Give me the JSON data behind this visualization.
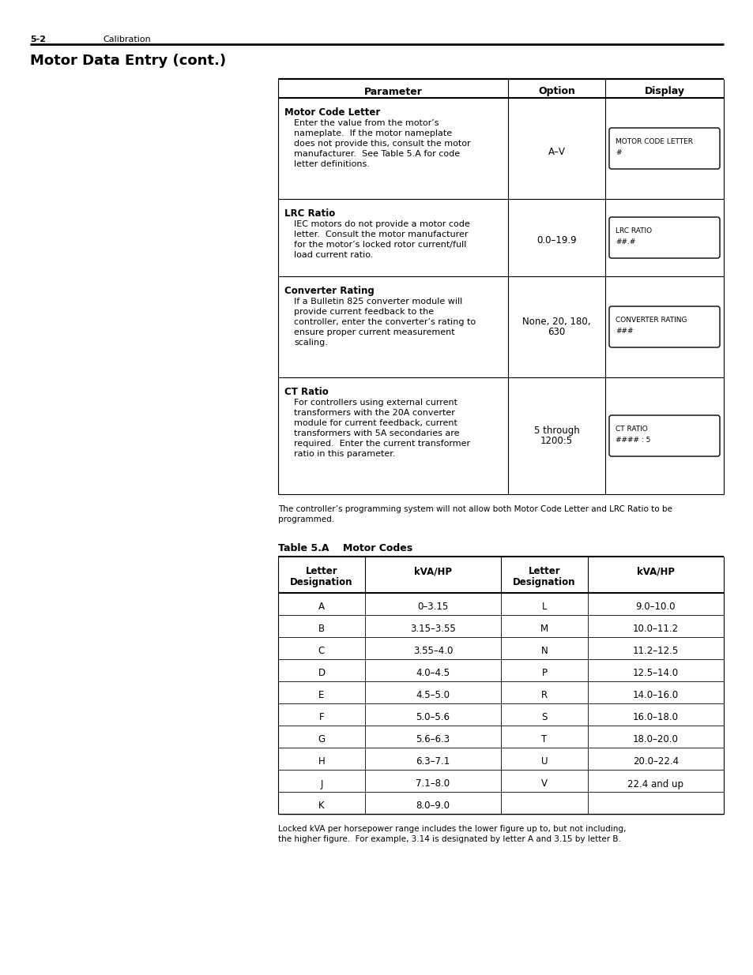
{
  "page_header_left": "5-2",
  "page_header_right": "Calibration",
  "main_title": "Motor Data Entry (cont.)",
  "bg_color": "#ffffff",
  "text_color": "#000000",
  "main_table_headers": [
    "Parameter",
    "Option",
    "Display"
  ],
  "main_table_rows": [
    {
      "param_title": "Motor Code Letter",
      "param_body": [
        "Enter the value from the motor’s",
        "nameplate.  If the motor nameplate",
        "does not provide this, consult the motor",
        "manufacturer.  See Table 5.A for code",
        "letter definitions."
      ],
      "option": [
        "A–V"
      ],
      "display_title": "MOTOR CODE LETTER",
      "display_body": "#"
    },
    {
      "param_title": "LRC Ratio",
      "param_body": [
        "IEC motors do not provide a motor code",
        "letter.  Consult the motor manufacturer",
        "for the motor’s locked rotor current/full",
        "load current ratio."
      ],
      "option": [
        "0.0–19.9"
      ],
      "display_title": "LRC RATIO",
      "display_body": "##.#"
    },
    {
      "param_title": "Converter Rating",
      "param_body": [
        "If a Bulletin 825 converter module will",
        "provide current feedback to the",
        "controller, enter the converter’s rating to",
        "ensure proper current measurement",
        "scaling."
      ],
      "option": [
        "None, 20, 180,",
        "630"
      ],
      "display_title": "CONVERTER RATING",
      "display_body": "###"
    },
    {
      "param_title": "CT Ratio",
      "param_body": [
        "For controllers using external current",
        "transformers with the 20A converter",
        "module for current feedback, current",
        "transformers with 5A secondaries are",
        "required.  Enter the current transformer",
        "ratio in this parameter."
      ],
      "option": [
        "5 through",
        "1200:5"
      ],
      "display_title": "CT RATIO",
      "display_body": "#### : 5"
    }
  ],
  "note_text": [
    "The controller’s programming system will not allow both Motor Code Letter and LRC Ratio to be",
    "programmed."
  ],
  "table2_title": "Table 5.A    Motor Codes",
  "table2_col1_header": [
    "Letter",
    "Designation"
  ],
  "table2_col2_header": "kVA/HP",
  "table2_col3_header": [
    "Letter",
    "Designation"
  ],
  "table2_col4_header": "kVA/HP",
  "table2_rows": [
    [
      "A",
      "0–3.15",
      "L",
      "9.0–10.0"
    ],
    [
      "B",
      "3.15–3.55",
      "M",
      "10.0–11.2"
    ],
    [
      "C",
      "3.55–4.0",
      "N",
      "11.2–12.5"
    ],
    [
      "D",
      "4.0–4.5",
      "P",
      "12.5–14.0"
    ],
    [
      "E",
      "4.5–5.0",
      "R",
      "14.0–16.0"
    ],
    [
      "F",
      "5.0–5.6",
      "S",
      "16.0–18.0"
    ],
    [
      "G",
      "5.6–6.3",
      "T",
      "18.0–20.0"
    ],
    [
      "H",
      "6.3–7.1",
      "U",
      "20.0–22.4"
    ],
    [
      "J",
      "7.1–8.0",
      "V",
      "22.4 and up"
    ],
    [
      "K",
      "8.0–9.0",
      "",
      ""
    ]
  ],
  "table2_note": [
    "Locked kVA per horsepower range includes the lower figure up to, but not including,",
    "the higher figure.  For example, 3.14 is designated by letter A and 3.15 by letter B."
  ]
}
